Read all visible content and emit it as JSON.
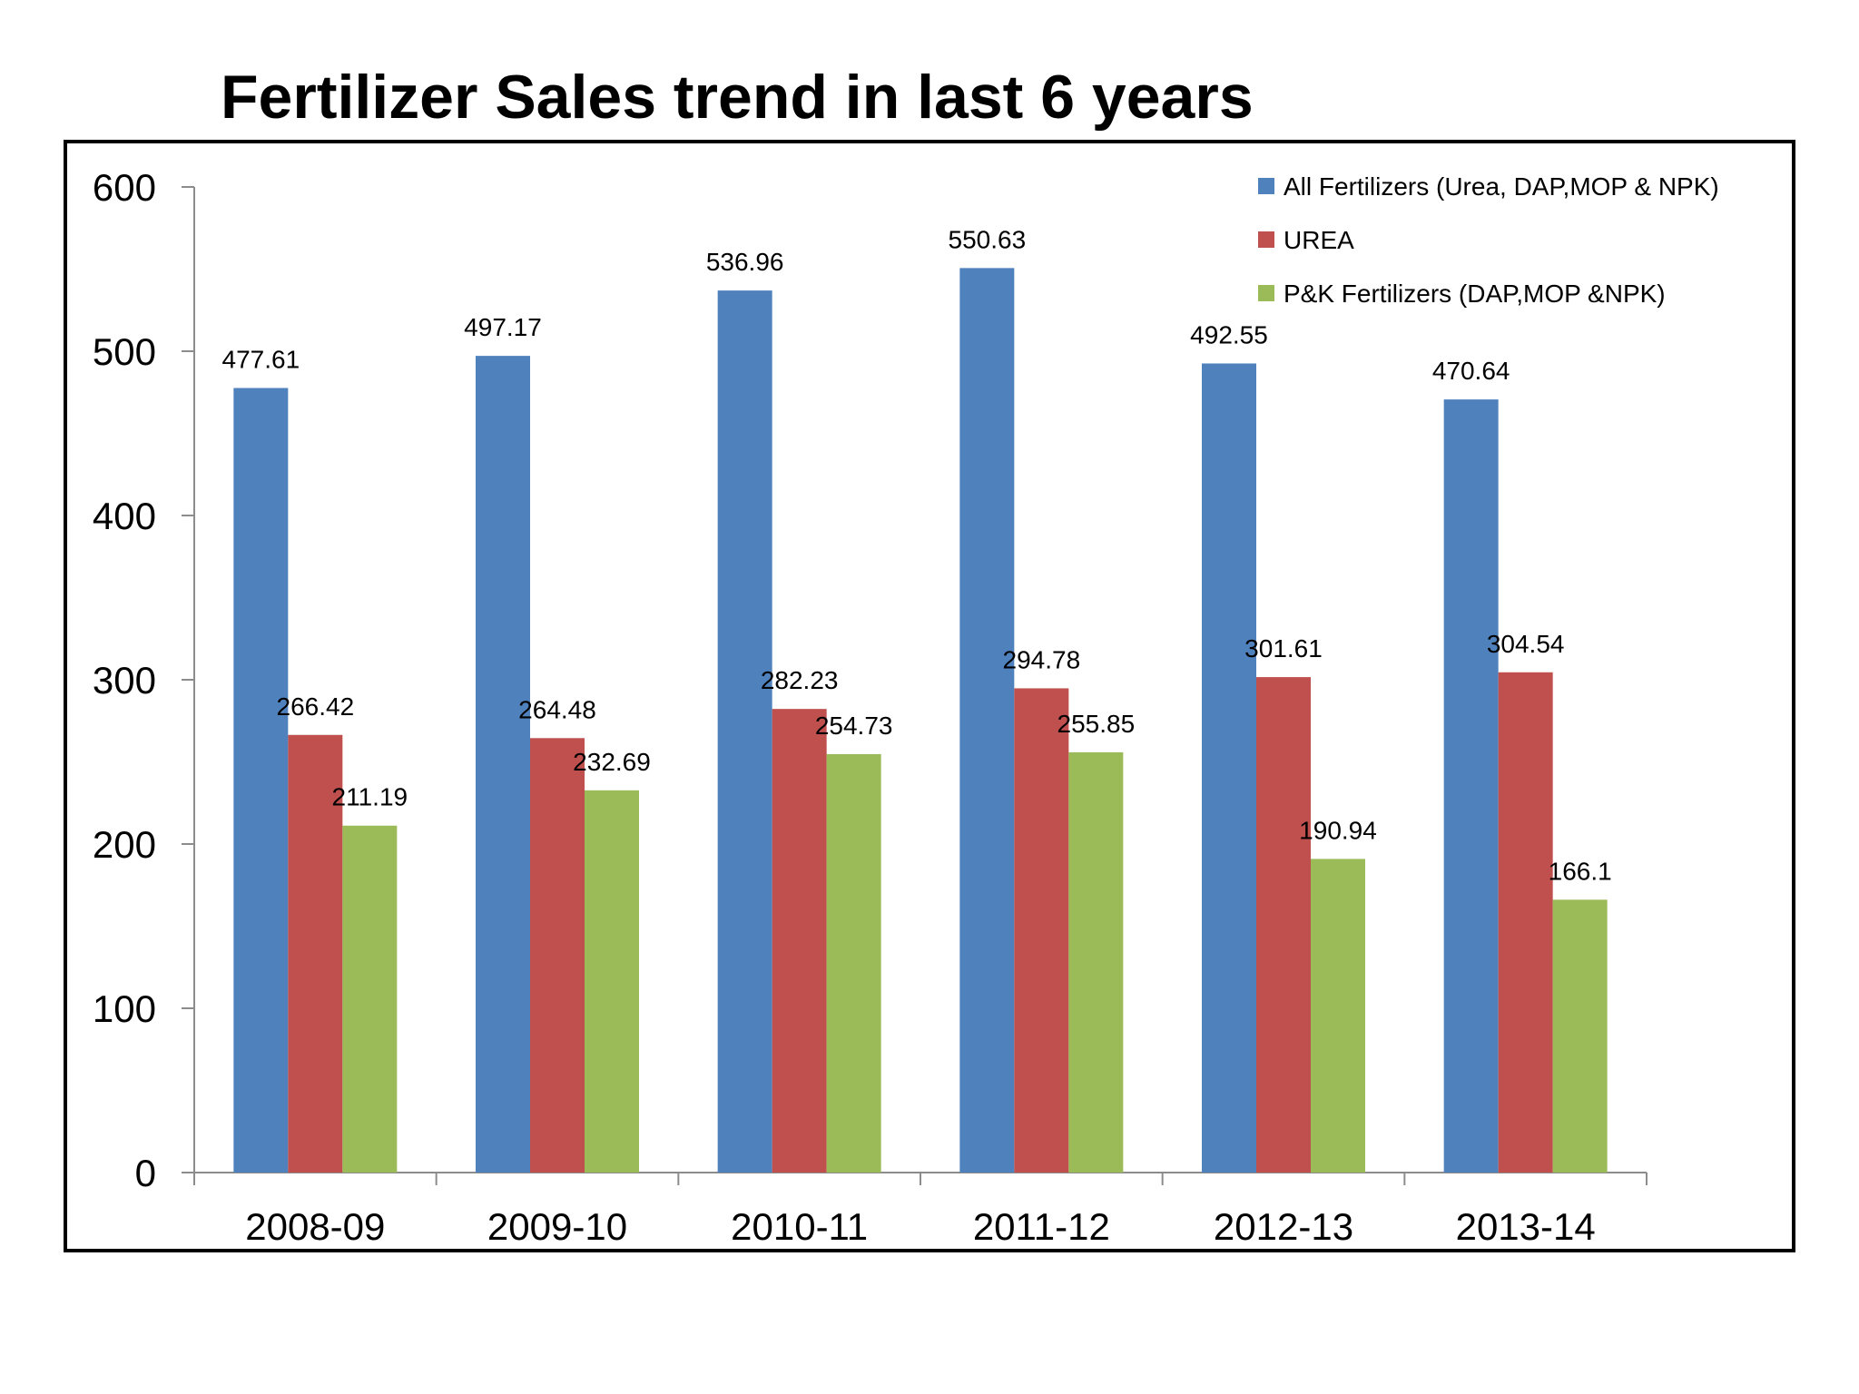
{
  "chart_data": {
    "type": "bar",
    "title": "Fertilizer Sales trend in last 6 years",
    "categories": [
      "2008-09",
      "2009-10",
      "2010-11",
      "2011-12",
      "2012-13",
      "2013-14"
    ],
    "series": [
      {
        "name": "All Fertilizers (Urea, DAP,MOP & NPK)",
        "color": "#4f81bd",
        "values": [
          477.61,
          497.17,
          536.96,
          550.63,
          492.55,
          470.64
        ],
        "labels": [
          "477.61",
          "497.17",
          "536.96",
          "550.63",
          "492.55",
          "470.64"
        ]
      },
      {
        "name": "UREA",
        "color": "#c0504d",
        "values": [
          266.42,
          264.48,
          282.23,
          294.78,
          301.61,
          304.54
        ],
        "labels": [
          "266.42",
          "264.48",
          "282.23",
          "294.78",
          "301.61",
          "304.54"
        ]
      },
      {
        "name": "P&K Fertilizers (DAP,MOP &NPK)",
        "color": "#9bbb59",
        "values": [
          211.19,
          232.69,
          254.73,
          255.85,
          190.94,
          166.1
        ],
        "labels": [
          "211.19",
          "232.69",
          "254.73",
          "255.85",
          "190.94",
          "166.1"
        ]
      }
    ],
    "ylim": [
      0,
      600
    ],
    "yticks": [
      "0",
      "100",
      "200",
      "300",
      "400",
      "500",
      "600"
    ],
    "grid": false,
    "legend": "top-right",
    "xlabel": "",
    "ylabel": ""
  }
}
